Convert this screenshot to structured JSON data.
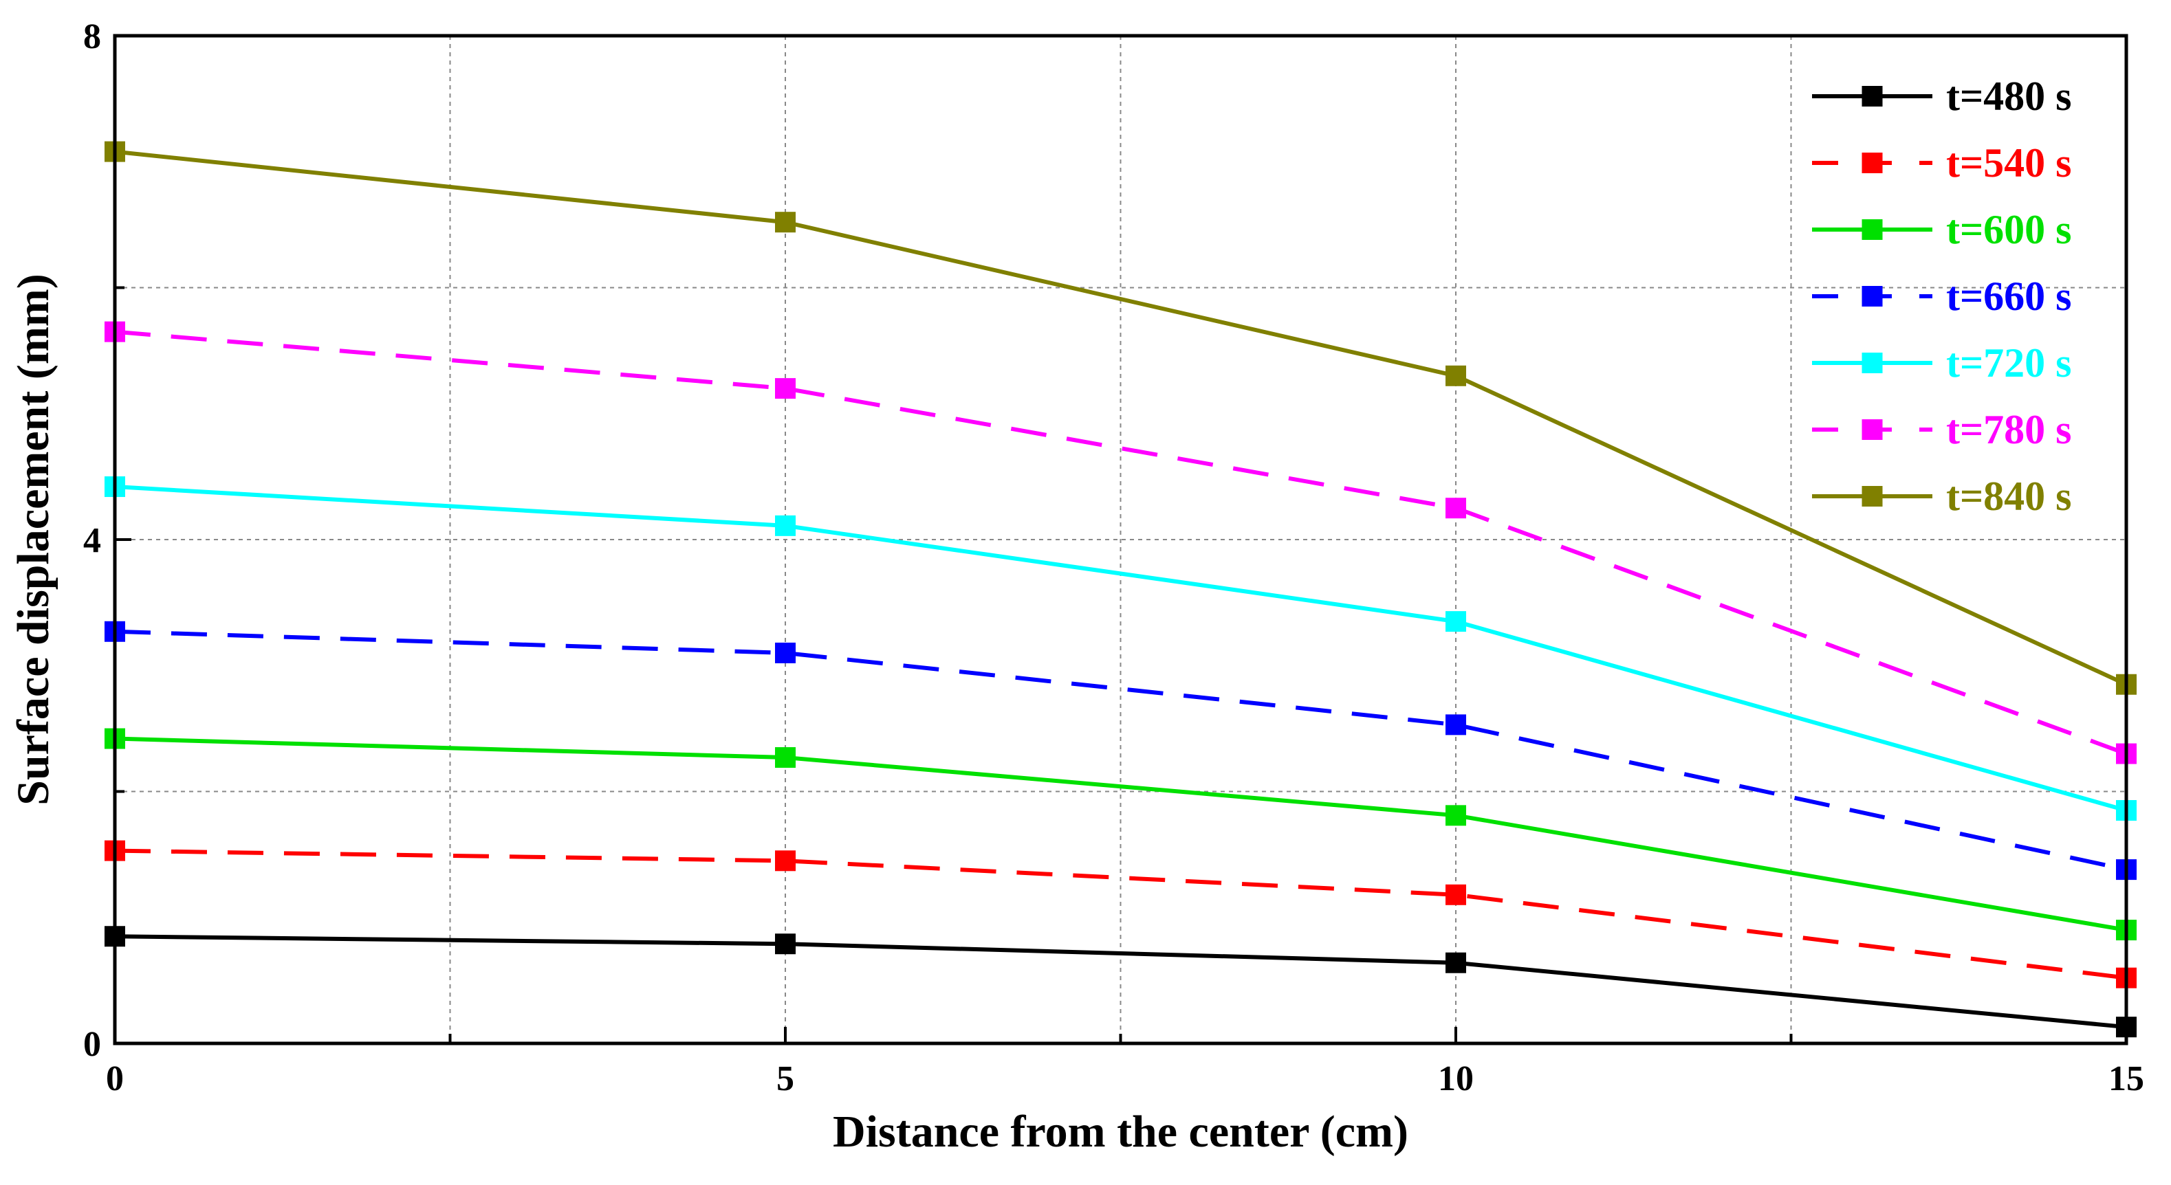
{
  "chart_data": {
    "type": "line",
    "xlabel": "Distance from the center (cm)",
    "ylabel": "Surface displacement (mm)",
    "x": [
      0,
      5,
      10,
      15
    ],
    "x_ticks": [
      "0",
      "5",
      "10",
      "15"
    ],
    "y_ticks": [
      "0",
      "4",
      "8"
    ],
    "xlim": [
      0,
      15
    ],
    "ylim": [
      0,
      8
    ],
    "grid": "dotted",
    "legend_position": "top-right",
    "series": [
      {
        "name": "t=480 s",
        "values": [
          0.85,
          0.79,
          0.64,
          0.13
        ],
        "color": "#000000",
        "dash": "solid"
      },
      {
        "name": "t=540 s",
        "values": [
          1.53,
          1.45,
          1.18,
          0.52
        ],
        "color": "#ff0000",
        "dash": "dashed"
      },
      {
        "name": "t=600 s",
        "values": [
          2.42,
          2.27,
          1.81,
          0.9
        ],
        "color": "#00e000",
        "dash": "solid"
      },
      {
        "name": "t=660 s",
        "values": [
          3.27,
          3.1,
          2.53,
          1.38
        ],
        "color": "#0000ff",
        "dash": "dashed"
      },
      {
        "name": "t=720 s",
        "values": [
          4.42,
          4.11,
          3.35,
          1.85
        ],
        "color": "#00ffff",
        "dash": "solid"
      },
      {
        "name": "t=780 s",
        "values": [
          5.65,
          5.2,
          4.25,
          2.3
        ],
        "color": "#ff00ff",
        "dash": "dashed"
      },
      {
        "name": "t=840 s",
        "values": [
          7.08,
          6.52,
          5.3,
          2.85
        ],
        "color": "#808000",
        "dash": "solid"
      }
    ]
  }
}
